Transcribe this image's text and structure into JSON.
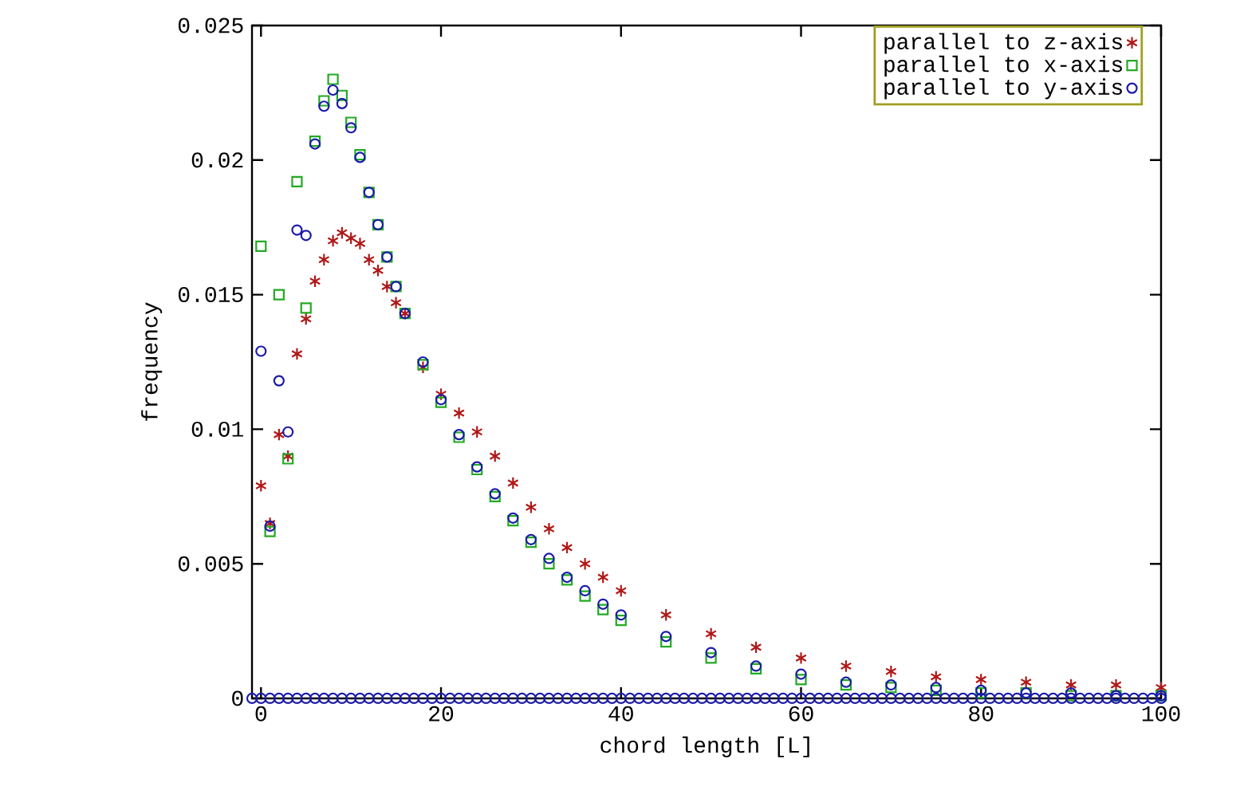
{
  "chart_data": {
    "type": "scatter",
    "xlabel": "chord length [L]",
    "ylabel": "frequency",
    "xlim": [
      -1,
      100
    ],
    "ylim": [
      0,
      0.025
    ],
    "xticks": [
      0,
      20,
      40,
      60,
      80,
      100
    ],
    "yticks": [
      0,
      0.005,
      0.01,
      0.015,
      0.02,
      0.025
    ],
    "legend": "top right",
    "grid": false,
    "x": [
      0,
      1,
      2,
      3,
      4,
      5,
      6,
      7,
      8,
      9,
      10,
      11,
      12,
      13,
      14,
      15,
      16,
      18,
      20,
      22,
      24,
      26,
      28,
      30,
      32,
      34,
      36,
      38,
      40,
      45,
      50,
      55,
      60,
      65,
      70,
      75,
      80,
      85,
      90,
      95,
      100
    ],
    "series": [
      {
        "name": "parallel to z-axis",
        "color": "#b01818",
        "marker": "cross",
        "values": [
          0.0079,
          0.0065,
          0.0098,
          0.009,
          0.0128,
          0.0141,
          0.0155,
          0.0163,
          0.017,
          0.0173,
          0.0171,
          0.0169,
          0.0163,
          0.0159,
          0.0153,
          0.0147,
          0.0143,
          0.0123,
          0.0113,
          0.0106,
          0.0099,
          0.009,
          0.008,
          0.0071,
          0.0063,
          0.0056,
          0.005,
          0.0045,
          0.004,
          0.0031,
          0.0024,
          0.0019,
          0.0015,
          0.0012,
          0.001,
          0.0008,
          0.0007,
          0.0006,
          0.0005,
          0.0005,
          0.0004
        ]
      },
      {
        "name": "parallel to x-axis",
        "color": "#22aa22",
        "marker": "square",
        "values": [
          0.0168,
          0.0062,
          0.015,
          0.0089,
          0.0192,
          0.0145,
          0.0207,
          0.0222,
          0.023,
          0.0224,
          0.0214,
          0.0202,
          0.0188,
          0.0176,
          0.0164,
          0.0153,
          0.0143,
          0.0124,
          0.011,
          0.0097,
          0.0085,
          0.0075,
          0.0066,
          0.0058,
          0.005,
          0.0044,
          0.0038,
          0.0033,
          0.0029,
          0.0021,
          0.0015,
          0.0011,
          0.0007,
          0.0005,
          0.0004,
          0.0003,
          0.0002,
          0.0002,
          0.0001,
          0.0001,
          0.0001
        ]
      },
      {
        "name": "parallel to y-axis",
        "color": "#1a1aaa",
        "marker": "circle",
        "values": [
          0.0129,
          0.0064,
          0.0118,
          0.0099,
          0.0174,
          0.0172,
          0.0206,
          0.022,
          0.0226,
          0.0221,
          0.0212,
          0.0201,
          0.0188,
          0.0176,
          0.0164,
          0.0153,
          0.0143,
          0.0125,
          0.0111,
          0.0098,
          0.0086,
          0.0076,
          0.0067,
          0.0059,
          0.0052,
          0.0045,
          0.004,
          0.0035,
          0.0031,
          0.0023,
          0.0017,
          0.0012,
          0.0009,
          0.0006,
          0.0005,
          0.0004,
          0.0003,
          0.0002,
          0.0002,
          0.0001,
          0.0001
        ]
      },
      {
        "color": "#1a1aaa",
        "marker": "circle",
        "x": [
          -1,
          0,
          1,
          2,
          3,
          4,
          5,
          6,
          7,
          8,
          9,
          10,
          11,
          12,
          13,
          14,
          15,
          16,
          17,
          18,
          19,
          20,
          21,
          22,
          23,
          24,
          25,
          26,
          27,
          28,
          29,
          30,
          31,
          32,
          33,
          34,
          35,
          36,
          37,
          38,
          39,
          40,
          41,
          42,
          43,
          44,
          45,
          46,
          47,
          48,
          49,
          50,
          51,
          52,
          53,
          54,
          55,
          56,
          57,
          58,
          59,
          60,
          61,
          62,
          63,
          64,
          65,
          66,
          67,
          68,
          69,
          70,
          71,
          72,
          73,
          74,
          75,
          76,
          77,
          78,
          79,
          80,
          81,
          82,
          83,
          84,
          85,
          86,
          87,
          88,
          89,
          90,
          91,
          92,
          93,
          94,
          95,
          96,
          97,
          98,
          99,
          100
        ],
        "values": [
          0,
          0,
          0,
          0,
          0,
          0,
          0,
          0,
          0,
          0,
          0,
          0,
          0,
          0,
          0,
          0,
          0,
          0,
          0,
          0,
          0,
          0,
          0,
          0,
          0,
          0,
          0,
          0,
          0,
          0,
          0,
          0,
          0,
          0,
          0,
          0,
          0,
          0,
          0,
          0,
          0,
          0,
          0,
          0,
          0,
          0,
          0,
          0,
          0,
          0,
          0,
          0,
          0,
          0,
          0,
          0,
          0,
          0,
          0,
          0,
          0,
          0,
          0,
          0,
          0,
          0,
          0,
          0,
          0,
          0,
          0,
          0,
          0,
          0,
          0,
          0,
          0,
          0,
          0,
          0,
          0,
          0,
          0,
          0,
          0,
          0,
          0,
          0,
          0,
          0,
          0,
          0,
          0,
          0,
          0,
          0,
          0,
          0,
          0,
          0,
          0,
          0
        ]
      }
    ]
  }
}
